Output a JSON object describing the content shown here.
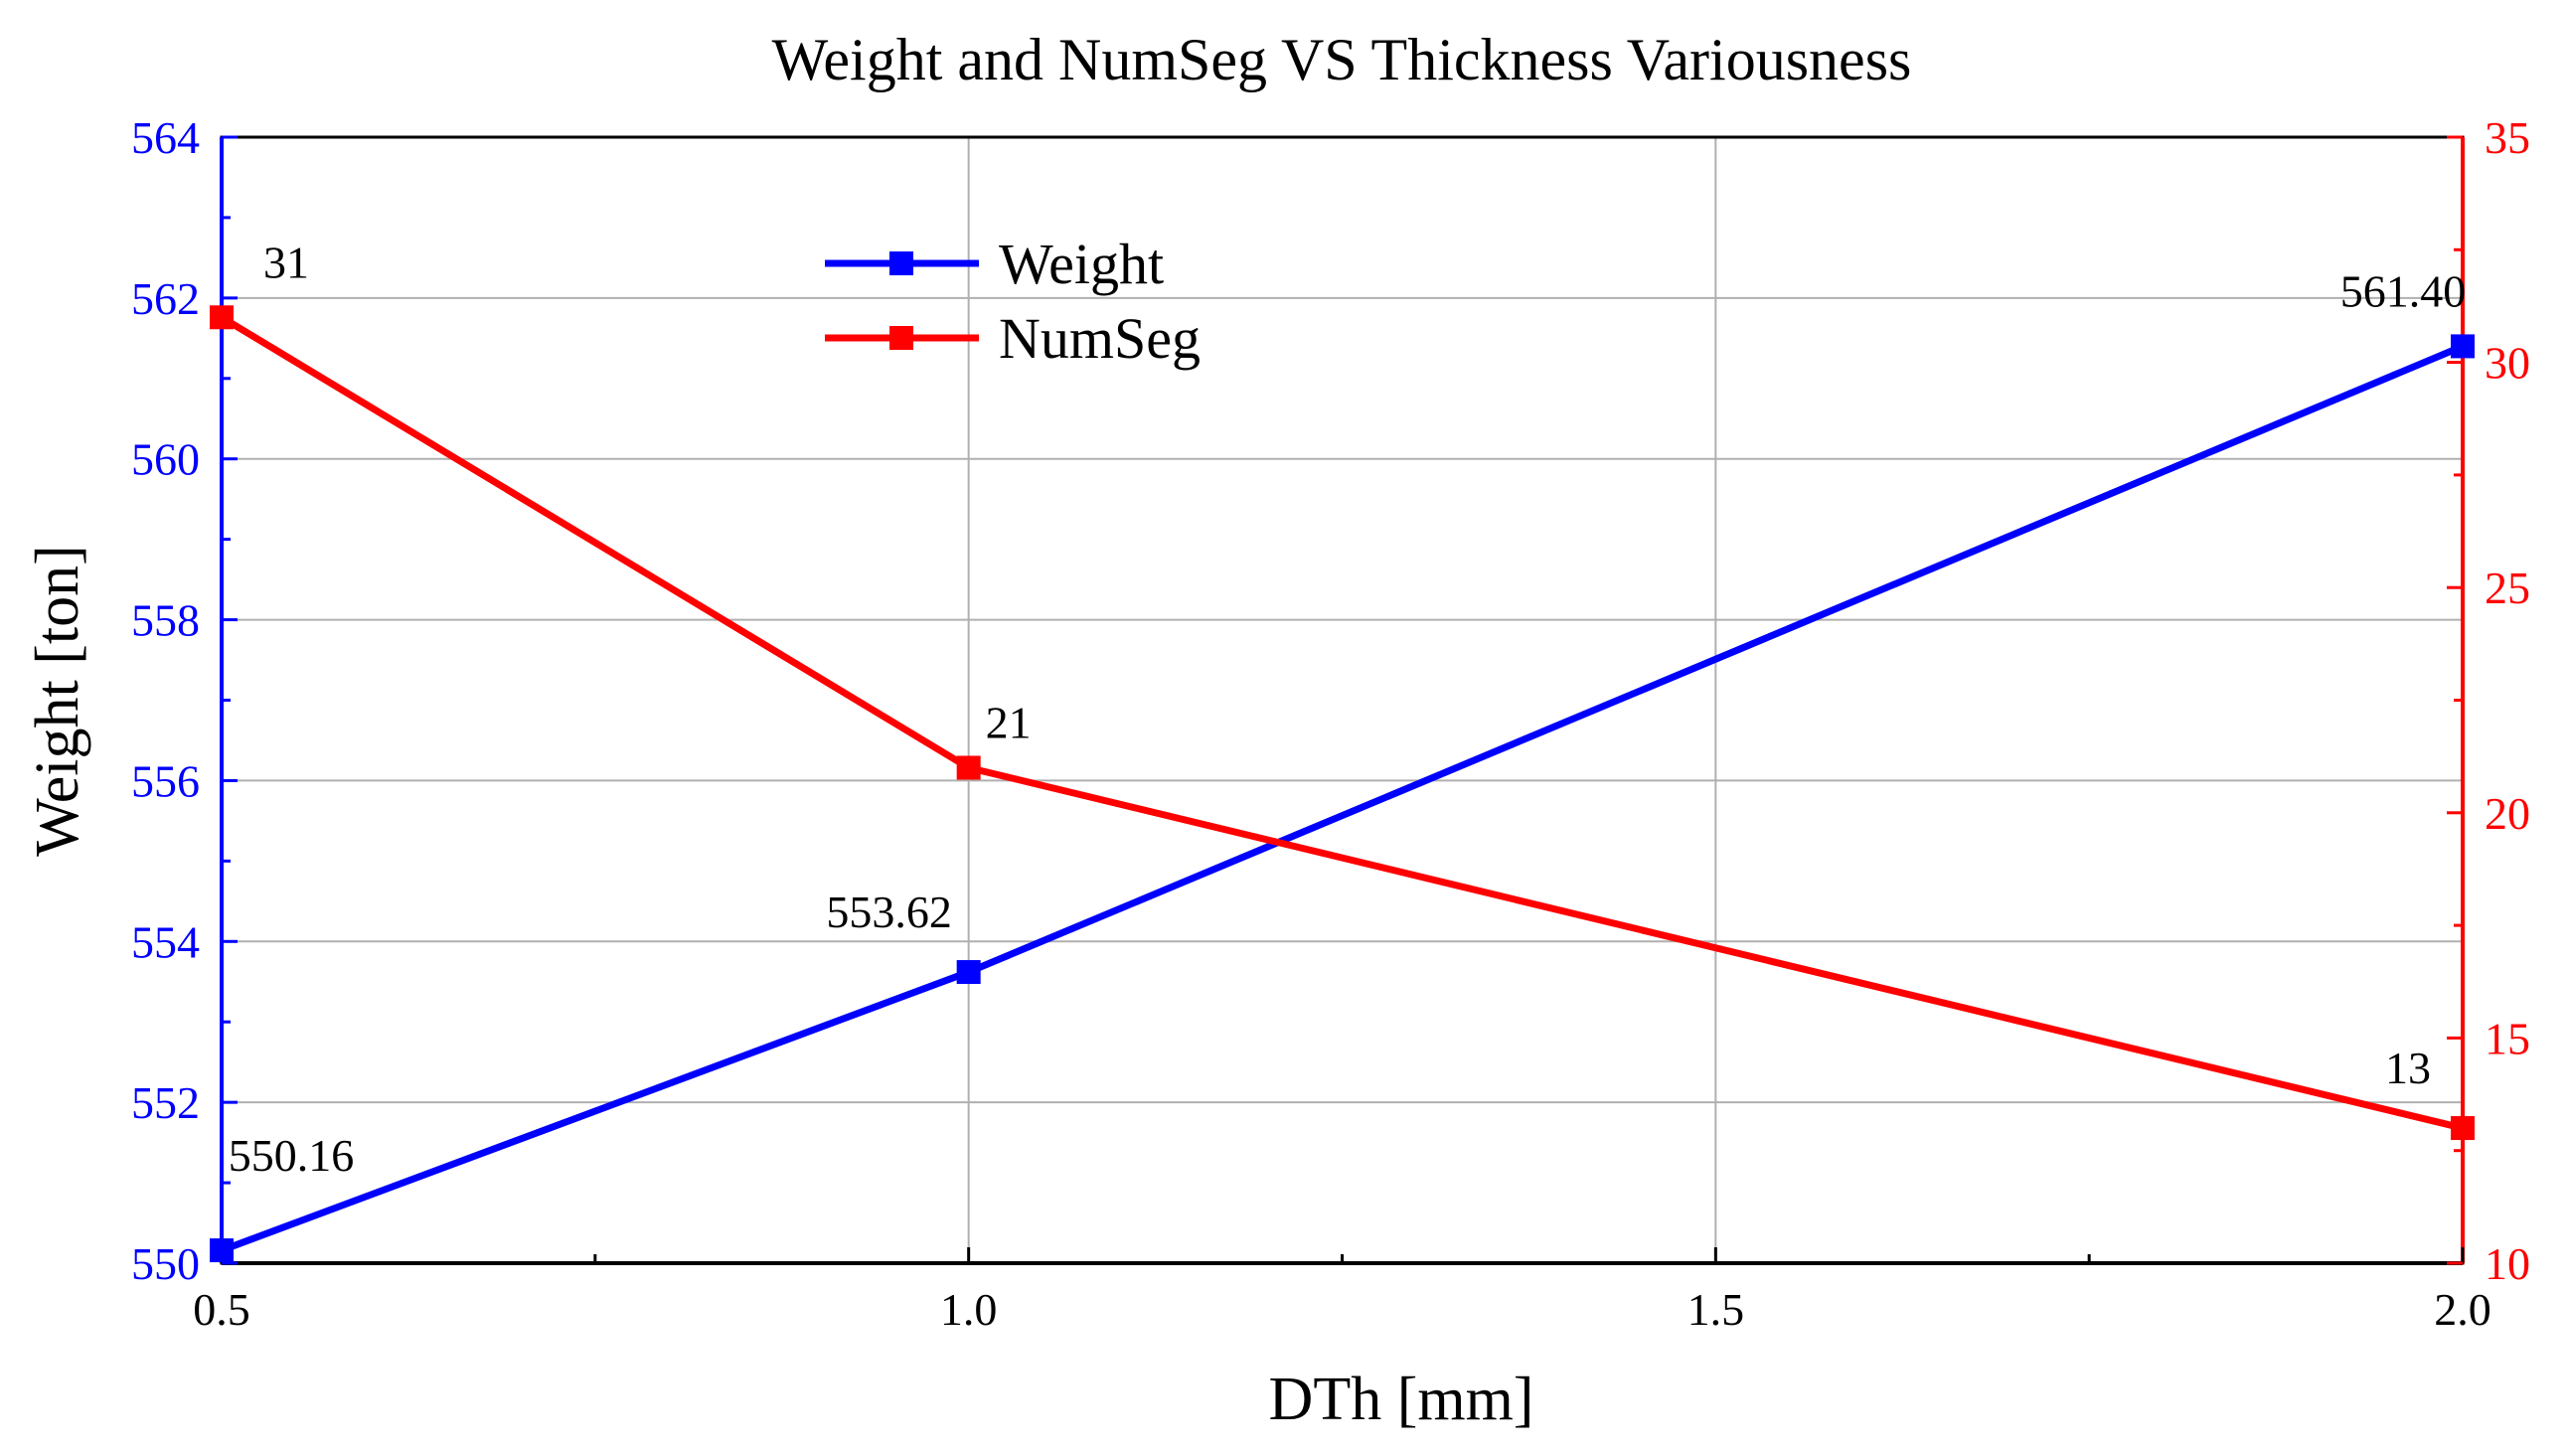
{
  "chart_data": {
    "type": "line",
    "title": "Weight and NumSeg VS Thickness Variousness",
    "xlabel": "DTh [mm]",
    "ylabel": "Weight [ton]",
    "y2label": "",
    "x": [
      0.5,
      1.0,
      2.0
    ],
    "xlim": [
      0.5,
      2.0
    ],
    "xticks": [
      "0.5",
      "1.0",
      "1.5",
      "2.0"
    ],
    "xtick_values": [
      0.5,
      1.0,
      1.5,
      2.0
    ],
    "ylim": [
      550,
      564
    ],
    "yticks": [
      "550",
      "552",
      "554",
      "556",
      "558",
      "560",
      "562",
      "564"
    ],
    "ytick_values": [
      550,
      552,
      554,
      556,
      558,
      560,
      562,
      564
    ],
    "y2lim": [
      10,
      35
    ],
    "y2ticks": [
      "10",
      "15",
      "20",
      "25",
      "30",
      "35"
    ],
    "y2tick_values": [
      10,
      15,
      20,
      25,
      30,
      35
    ],
    "grid": true,
    "legend_position": "top-center",
    "series": [
      {
        "name": "Weight",
        "axis": "left",
        "color": "#0000ff",
        "marker": "square",
        "values": [
          550.16,
          553.62,
          561.4
        ],
        "labels": [
          "550.16",
          "553.62",
          "561.40"
        ]
      },
      {
        "name": "NumSeg",
        "axis": "right",
        "color": "#ff0000",
        "marker": "square",
        "values": [
          31,
          21,
          13
        ],
        "labels": [
          "31",
          "21",
          "13"
        ]
      }
    ]
  }
}
